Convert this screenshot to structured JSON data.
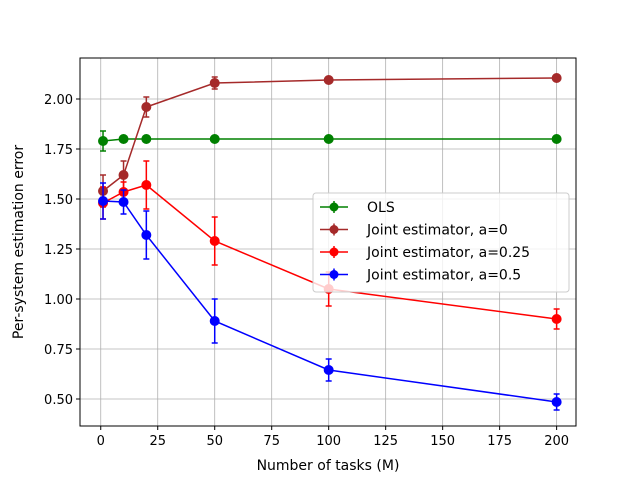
{
  "chart_data": {
    "type": "line",
    "title": "",
    "xlabel": "Number of tasks (M)",
    "ylabel": "Per-system estimation error",
    "xlim": [
      -9.1,
      208.5
    ],
    "ylim": [
      0.365,
      2.205
    ],
    "xticks": [
      0,
      25,
      50,
      75,
      100,
      125,
      150,
      175,
      200
    ],
    "yticks": [
      0.5,
      0.75,
      1.0,
      1.25,
      1.5,
      1.75,
      2.0
    ],
    "ytick_labels": [
      "0.50",
      "0.75",
      "1.00",
      "1.25",
      "1.50",
      "1.75",
      "2.00"
    ],
    "grid": true,
    "legend_position": "center-right",
    "x": [
      1,
      10,
      20,
      50,
      100,
      200
    ],
    "series": [
      {
        "name": "OLS",
        "color": "#008000",
        "values": [
          1.79,
          1.8,
          1.8,
          1.8,
          1.8,
          1.8
        ],
        "errors": [
          0.05,
          0.01,
          0.01,
          0.01,
          0.01,
          0.01
        ]
      },
      {
        "name": "Joint estimator, a=0",
        "color": "#a52a2a",
        "values": [
          1.54,
          1.62,
          1.96,
          2.08,
          2.095,
          2.105
        ],
        "errors": [
          0.08,
          0.07,
          0.05,
          0.03,
          0.01,
          0.01
        ]
      },
      {
        "name": "Joint estimator, a=0.25",
        "color": "#ff0000",
        "values": [
          1.48,
          1.535,
          1.57,
          1.29,
          1.05,
          0.9
        ],
        "errors": [
          0.08,
          0.05,
          0.12,
          0.12,
          0.085,
          0.05
        ]
      },
      {
        "name": "Joint estimator, a=0.5",
        "color": "#0000ff",
        "values": [
          1.49,
          1.485,
          1.32,
          0.89,
          0.645,
          0.485
        ],
        "errors": [
          0.09,
          0.06,
          0.12,
          0.11,
          0.055,
          0.04
        ]
      }
    ]
  }
}
